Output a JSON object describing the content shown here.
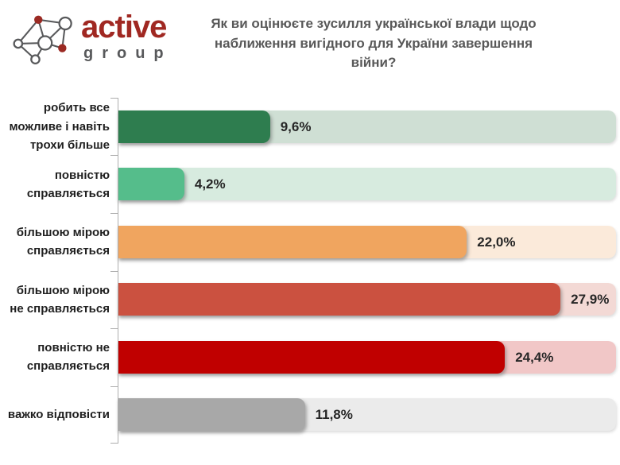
{
  "logo": {
    "name_top": "active",
    "name_bottom": "group",
    "brand_color": "#A02822",
    "gray_color": "#58595B"
  },
  "title": "Як ви оцінюєте зусилля української влади щодо наближення вигідного для України завершення війни?",
  "chart_data": {
    "type": "bar",
    "orientation": "horizontal",
    "title": "Як ви оцінюєте зусилля української влади щодо наближення вигідного для України завершення війни?",
    "categories": [
      "робить все можливе і навіть трохи більше",
      "повністю справляється",
      "більшою мірою справляється",
      "більшою мірою не справляється",
      "повністю не справляється",
      "важко відповісти"
    ],
    "values": [
      9.6,
      4.2,
      22.0,
      27.9,
      24.4,
      11.8
    ],
    "value_labels": [
      "9,6%",
      "4,2%",
      "22,0%",
      "27,9%",
      "24,4%",
      "11,8%"
    ],
    "bar_colors": [
      "#2E7D4F",
      "#55BD8B",
      "#F0A55F",
      "#CB5140",
      "#C00000",
      "#A8A8A8"
    ],
    "track_colors": [
      "#CFDFD4",
      "#D7EBDF",
      "#FBEADA",
      "#F3D9D5",
      "#F1C7C7",
      "#EBEBEB"
    ],
    "xlim": [
      0,
      31.4
    ],
    "grid": false,
    "legend": false,
    "axis_color": "#ADADAD"
  }
}
